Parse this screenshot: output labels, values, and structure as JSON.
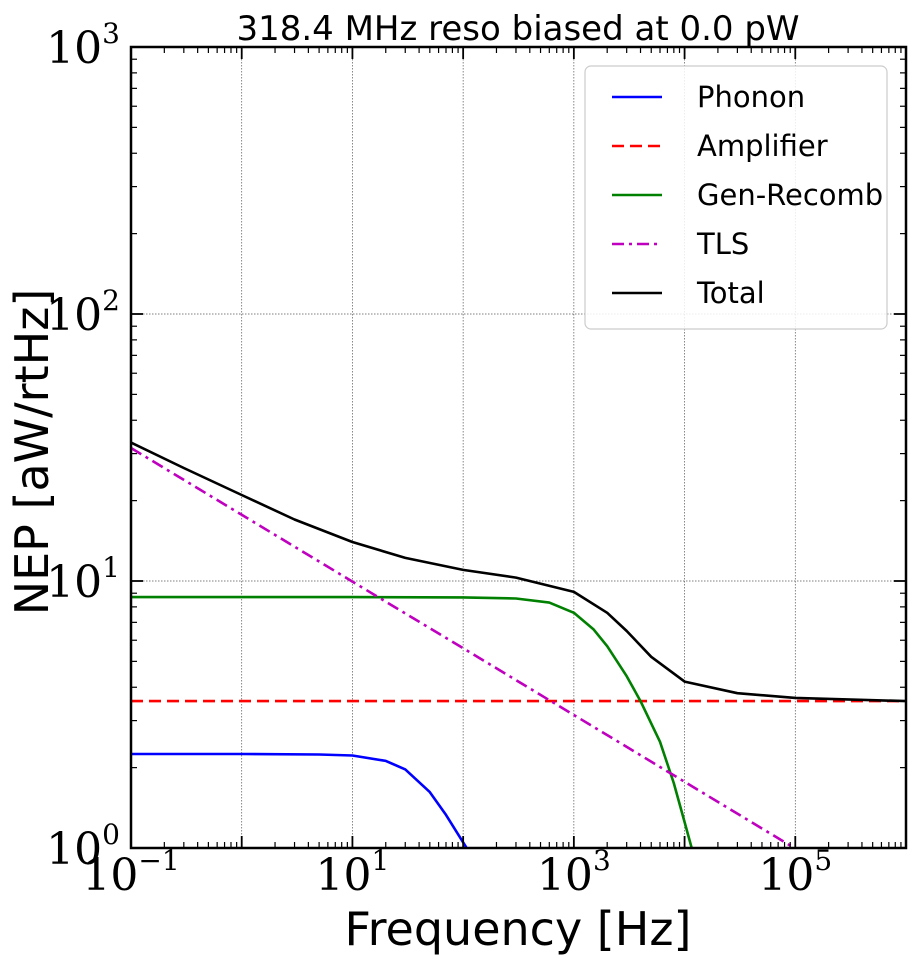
{
  "chart_data": {
    "type": "line",
    "title": "318.4 MHz reso biased at 0.0 pW",
    "xlabel": "Frequency [Hz]",
    "ylabel": "NEP [aW/rtHz]",
    "xscale": "log",
    "yscale": "log",
    "xlim": [
      0.1,
      1000000
    ],
    "ylim": [
      1,
      1000
    ],
    "grid": true,
    "legend_position": "top-right",
    "x_ticks": [
      {
        "value": 0.1,
        "base": "10",
        "exp": "−1"
      },
      {
        "value": 10,
        "base": "10",
        "exp": "1"
      },
      {
        "value": 1000,
        "base": "10",
        "exp": "3"
      },
      {
        "value": 100000,
        "base": "10",
        "exp": "5"
      }
    ],
    "y_ticks": [
      {
        "value": 1,
        "base": "10",
        "exp": "0"
      },
      {
        "value": 10,
        "base": "10",
        "exp": "1"
      },
      {
        "value": 100,
        "base": "10",
        "exp": "2"
      },
      {
        "value": 1000,
        "base": "10",
        "exp": "3"
      }
    ],
    "series": [
      {
        "name": "Phonon",
        "color": "#0000ff",
        "dash": "solid",
        "x": [
          0.1,
          1,
          5,
          10,
          20,
          30,
          50,
          70,
          100,
          120
        ],
        "y": [
          2.25,
          2.25,
          2.24,
          2.22,
          2.12,
          1.97,
          1.62,
          1.33,
          1.05,
          0.93
        ]
      },
      {
        "name": "Amplifier",
        "color": "#ff0000",
        "dash": "dashed",
        "x": [
          0.1,
          1000000
        ],
        "y": [
          3.55,
          3.55
        ]
      },
      {
        "name": "Gen-Recomb",
        "color": "#008000",
        "dash": "solid",
        "x": [
          0.1,
          1,
          10,
          100,
          300,
          600,
          1000,
          1500,
          2000,
          3000,
          4000,
          6000,
          8000,
          10000,
          12000
        ],
        "y": [
          8.7,
          8.7,
          8.7,
          8.68,
          8.6,
          8.3,
          7.6,
          6.6,
          5.7,
          4.4,
          3.55,
          2.5,
          1.75,
          1.25,
          0.95
        ]
      },
      {
        "name": "TLS",
        "color": "#bf00bf",
        "dash": "dashdot",
        "x": [
          0.1,
          1,
          10,
          100,
          1000,
          10000,
          100000,
          200000
        ],
        "y": [
          31.5,
          17.7,
          9.95,
          5.6,
          3.15,
          1.77,
          0.995,
          0.86
        ]
      },
      {
        "name": "Total",
        "color": "#000000",
        "dash": "solid",
        "x": [
          0.1,
          0.3,
          1,
          3,
          10,
          30,
          100,
          300,
          1000,
          2000,
          3000,
          5000,
          10000,
          30000,
          100000,
          1000000
        ],
        "y": [
          33,
          26.5,
          21,
          17,
          14,
          12.2,
          11,
          10.3,
          9.1,
          7.6,
          6.5,
          5.2,
          4.2,
          3.8,
          3.65,
          3.55
        ]
      }
    ]
  }
}
